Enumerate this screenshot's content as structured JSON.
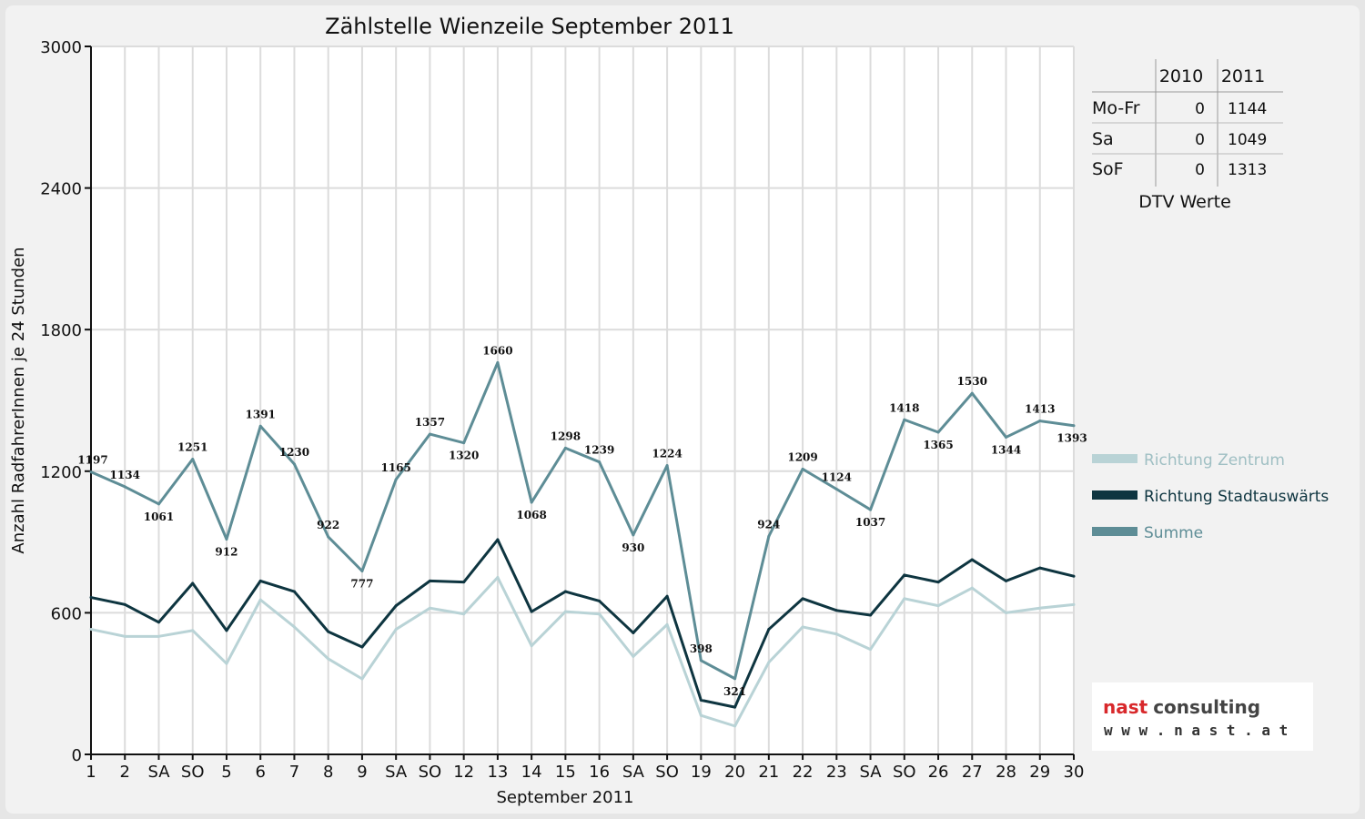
{
  "chart_data": {
    "type": "line",
    "title": "Zählstelle Wienzeile September 2011",
    "xlabel": "September 2011",
    "ylabel": "Anzahl RadfahrerInnen je 24 Stunden",
    "ylim": [
      0,
      3000
    ],
    "yticks": [
      0,
      600,
      1200,
      1800,
      2400,
      3000
    ],
    "grid": true,
    "legend_position": "right",
    "categories": [
      "1",
      "2",
      "SA",
      "SO",
      "5",
      "6",
      "7",
      "8",
      "9",
      "SA",
      "SO",
      "12",
      "13",
      "14",
      "15",
      "16",
      "SA",
      "SO",
      "19",
      "20",
      "21",
      "22",
      "23",
      "SA",
      "SO",
      "26",
      "27",
      "28",
      "29",
      "30"
    ],
    "highlight_categories": [
      "SO"
    ],
    "highlight_color": "#e00000",
    "series": [
      {
        "name": "Richtung Zentrum",
        "color": "#b9d3d6",
        "values": [
          530,
          500,
          500,
          525,
          385,
          655,
          540,
          405,
          320,
          530,
          620,
          595,
          750,
          460,
          605,
          595,
          415,
          550,
          165,
          120,
          390,
          540,
          510,
          445,
          660,
          630,
          705,
          600,
          620,
          635
        ]
      },
      {
        "name": "Richtung Stadtauswärts",
        "color": "#0e3540",
        "values": [
          665,
          635,
          560,
          725,
          525,
          735,
          690,
          520,
          455,
          630,
          735,
          730,
          910,
          605,
          690,
          650,
          515,
          670,
          230,
          200,
          530,
          660,
          610,
          590,
          760,
          730,
          825,
          735,
          790,
          755
        ]
      },
      {
        "name": "Summe",
        "color": "#5e8d96",
        "values": [
          1197,
          1134,
          1061,
          1251,
          912,
          1391,
          1230,
          922,
          777,
          1165,
          1357,
          1320,
          1660,
          1068,
          1298,
          1239,
          930,
          1224,
          398,
          321,
          924,
          1209,
          1124,
          1037,
          1418,
          1365,
          1530,
          1344,
          1413,
          1393
        ]
      }
    ],
    "data_labels": [
      "1197",
      "1134",
      "1061",
      "1251",
      "912",
      "1391",
      "1230",
      "922",
      "777",
      "1165",
      "1357",
      "1320",
      "1660",
      "1068",
      "1298",
      "1239",
      "930",
      "1224",
      "398",
      "321",
      "924",
      "1209",
      "1124",
      "1037",
      "1418",
      "1365",
      "1530",
      "1344",
      "1413",
      "1393"
    ]
  },
  "dtv_table": {
    "headers": [
      "2010",
      "2011"
    ],
    "rows": [
      {
        "label": "Mo-Fr",
        "v2010": "0",
        "v2011": "1144"
      },
      {
        "label": "Sa",
        "v2010": "0",
        "v2011": "1049"
      },
      {
        "label": "SoF",
        "v2010": "0",
        "v2011": "1313"
      }
    ],
    "caption": "DTV Werte"
  },
  "logo": {
    "name_part1": "nast",
    "name_part2": "consulting",
    "url": "w w w . n a s t . a t",
    "color_part1": "#d8282b",
    "color_part2": "#444444"
  }
}
